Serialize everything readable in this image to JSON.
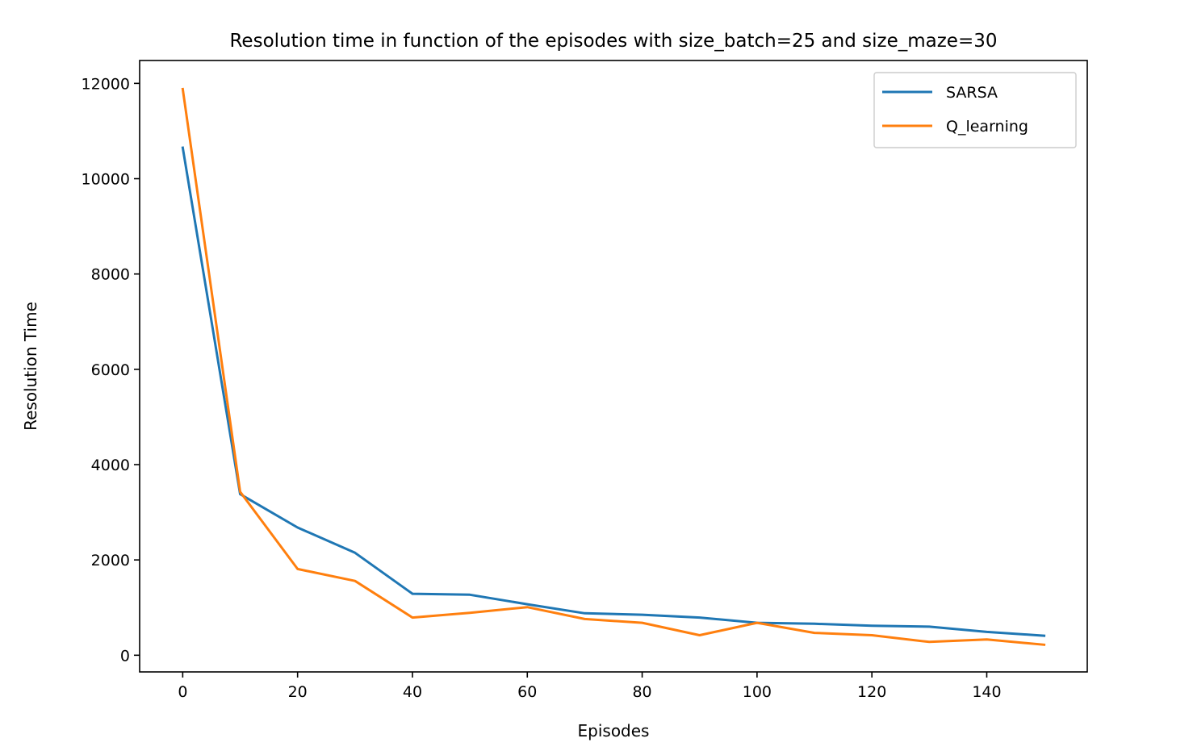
{
  "chart_data": {
    "type": "line",
    "title": "Resolution time in function of the episodes with size_batch=25 and size_maze=30",
    "xlabel": "Episodes",
    "ylabel": "Resolution Time",
    "x": [
      0,
      10,
      20,
      30,
      40,
      50,
      60,
      70,
      80,
      90,
      100,
      110,
      120,
      130,
      140,
      150
    ],
    "series": [
      {
        "name": "SARSA",
        "color": "#1f77b4",
        "values": [
          10650,
          3380,
          2680,
          2150,
          1290,
          1270,
          1070,
          880,
          850,
          790,
          680,
          660,
          620,
          600,
          490,
          410
        ]
      },
      {
        "name": "Q_learning",
        "color": "#ff7f0e",
        "values": [
          11880,
          3430,
          1810,
          1560,
          790,
          890,
          1010,
          760,
          680,
          420,
          680,
          470,
          420,
          280,
          330,
          220
        ]
      }
    ],
    "xlim": [
      -7.5,
      157.5
    ],
    "ylim": [
      -350,
      12480
    ],
    "xticks": [
      0,
      20,
      40,
      60,
      80,
      100,
      120,
      140
    ],
    "yticks": [
      0,
      2000,
      4000,
      6000,
      8000,
      10000,
      12000
    ],
    "grid": false,
    "legend_position": "upper right"
  }
}
